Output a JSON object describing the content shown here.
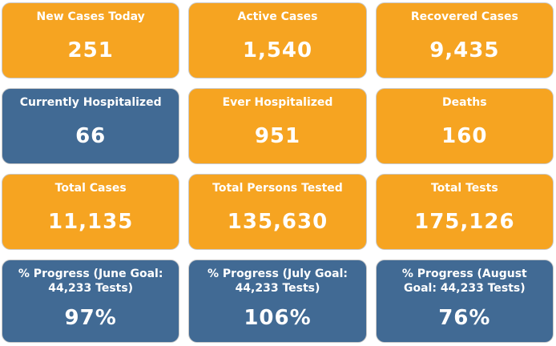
{
  "tiles": [
    {
      "title": "New Cases Today",
      "value": "251",
      "color": "#f6a421"
    },
    {
      "title": "Active Cases",
      "value": "1,540",
      "color": "#f6a421"
    },
    {
      "title": "Recovered Cases",
      "value": "9,435",
      "color": "#f6a421"
    },
    {
      "title": "Currently Hospitalized",
      "value": "66",
      "color": "#416a94"
    },
    {
      "title": "Ever Hospitalized",
      "value": "951",
      "color": "#f6a421"
    },
    {
      "title": "Deaths",
      "value": "160",
      "color": "#f6a421"
    },
    {
      "title": "Total Cases",
      "value": "11,135",
      "color": "#f6a421"
    },
    {
      "title": "Total Persons Tested",
      "value": "135,630",
      "color": "#f6a421"
    },
    {
      "title": "Total Tests",
      "value": "175,126",
      "color": "#f6a421"
    },
    {
      "title": "% Progress (June Goal: 44,233 Tests)",
      "value": "97%",
      "color": "#416a94"
    },
    {
      "title": "% Progress (July Goal: 44,233 Tests)",
      "value": "106%",
      "color": "#416a94"
    },
    {
      "title": "% Progress (August Goal: 44,233 Tests)",
      "value": "76%",
      "color": "#416a94"
    }
  ]
}
